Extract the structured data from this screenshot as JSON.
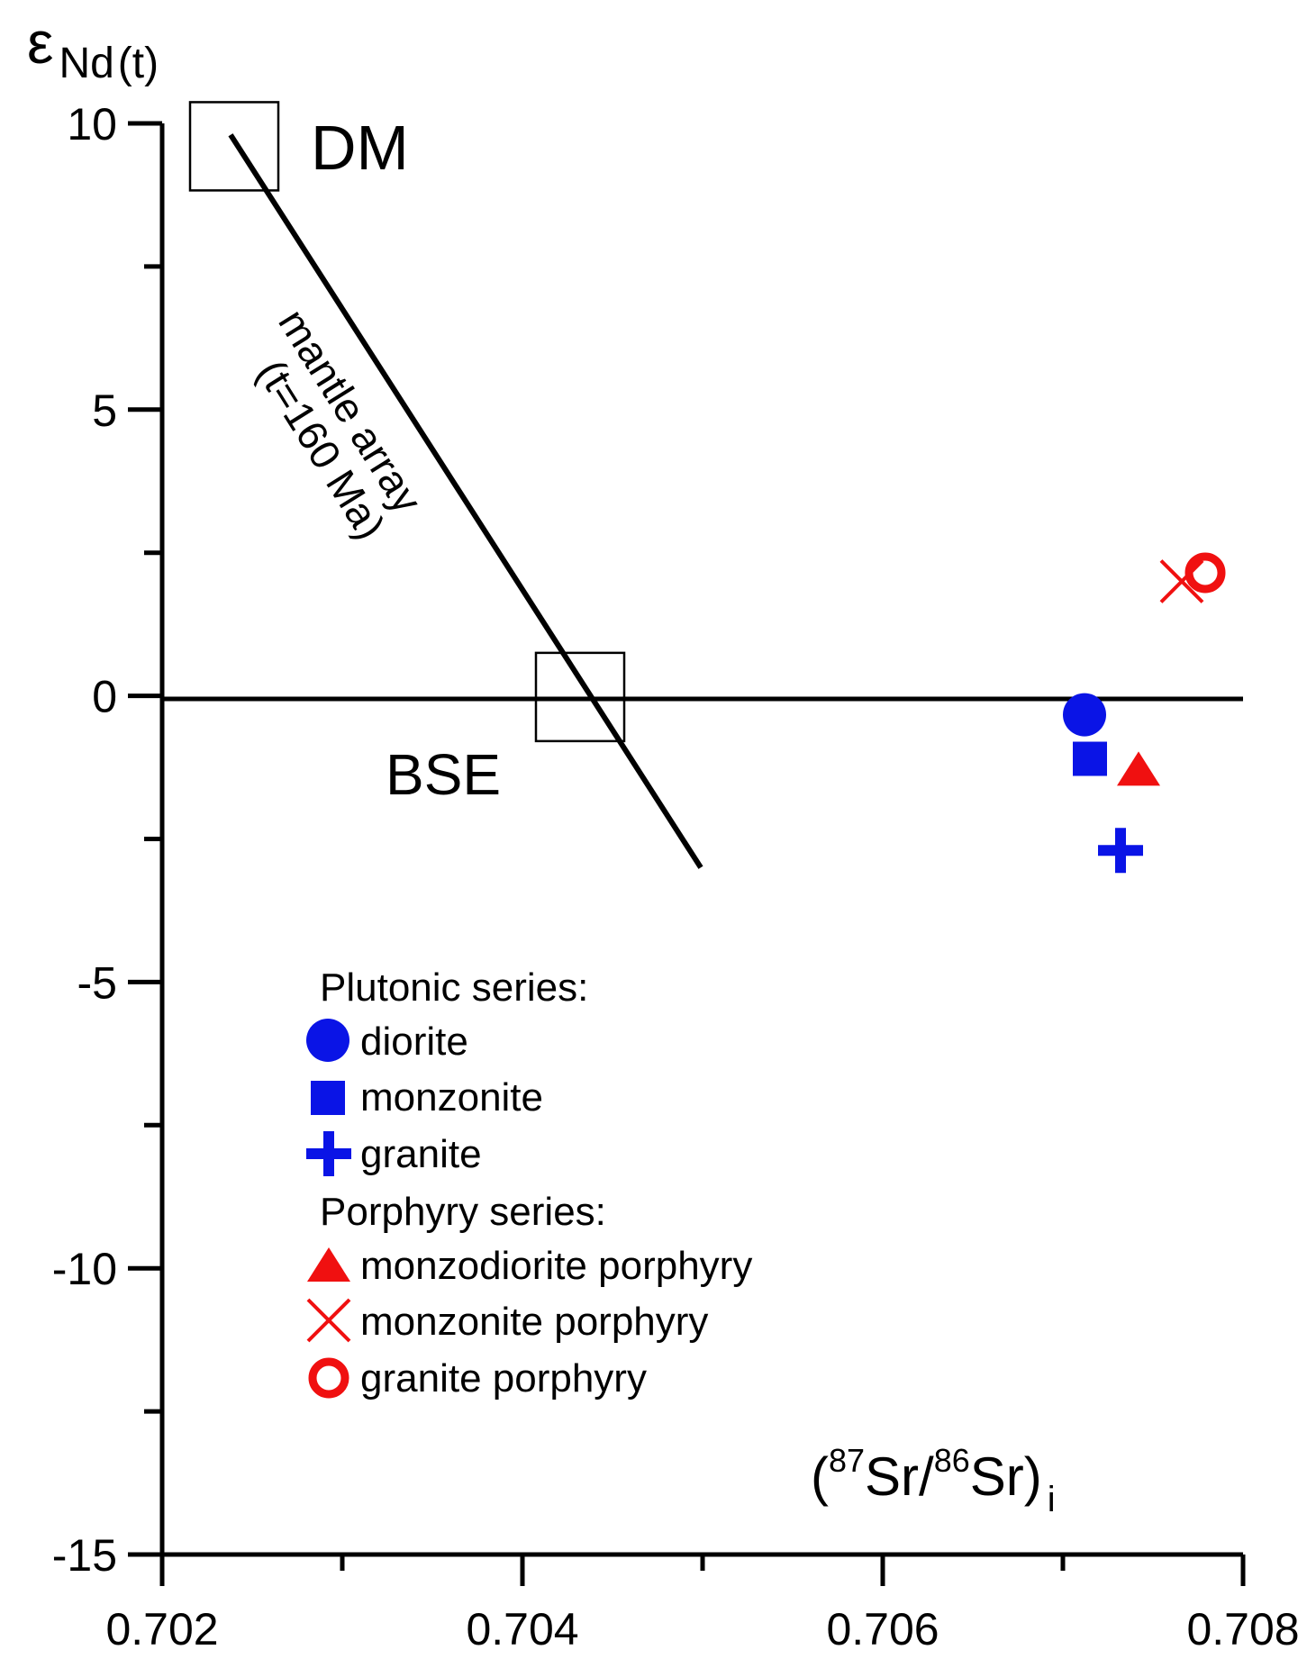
{
  "colors": {
    "blue": "#0a14e6",
    "red": "#f01010",
    "axis": "#000000"
  },
  "chart_data": {
    "type": "scatter",
    "title": "",
    "ylabel": {
      "main": "ε",
      "sub_base": "Nd",
      "sub_paren": "(t)"
    },
    "xlabel": {
      "open": "(",
      "sup1": "87",
      "mid1": "Sr/",
      "sup2": "86",
      "mid2": "Sr)",
      "sub": "i"
    },
    "xlim": [
      0.702,
      0.708
    ],
    "ylim": [
      -15,
      10
    ],
    "x_ticks": [
      0.702,
      0.704,
      0.706,
      0.708
    ],
    "x_tick_labels": [
      "0.702",
      "0.704",
      "0.706",
      "0.708"
    ],
    "y_ticks": [
      10,
      5,
      0,
      -5,
      -10,
      -15
    ],
    "y_tick_labels": [
      "10",
      "5",
      "0",
      "-5",
      "-10",
      "-15"
    ],
    "reference_line_y": 0,
    "mantle_array": {
      "x": [
        0.70238,
        0.70499
      ],
      "y": [
        9.8,
        -3.0
      ],
      "label_line1": "mantle array",
      "label_line2": "(t=160 Ma)"
    },
    "reservoirs": [
      {
        "label": "DM",
        "x": 0.7024,
        "y": 9.6
      },
      {
        "label": "BSE",
        "x": 0.70432,
        "y": -0.02
      }
    ],
    "legend": {
      "groups": [
        {
          "title": "Plutonic series:",
          "items": [
            {
              "name": "diorite",
              "marker": "circle",
              "color": "#0a14e6"
            },
            {
              "name": "monzonite",
              "marker": "square",
              "color": "#0a14e6"
            },
            {
              "name": "granite",
              "marker": "plus",
              "color": "#0a14e6"
            }
          ]
        },
        {
          "title": "Porphyry series:",
          "items": [
            {
              "name": "monzodiorite porphyry",
              "marker": "triangle",
              "color": "#f01010"
            },
            {
              "name": "monzonite porphyry",
              "marker": "cross",
              "color": "#f01010"
            },
            {
              "name": "granite porphyry",
              "marker": "ring",
              "color": "#f01010"
            }
          ]
        }
      ]
    },
    "series": [
      {
        "name": "diorite",
        "marker": "circle",
        "color": "#0a14e6",
        "points": [
          {
            "x": 0.70712,
            "y": -0.33
          }
        ]
      },
      {
        "name": "monzonite",
        "marker": "square",
        "color": "#0a14e6",
        "points": [
          {
            "x": 0.70715,
            "y": -1.1
          }
        ]
      },
      {
        "name": "granite",
        "marker": "plus",
        "color": "#0a14e6",
        "points": [
          {
            "x": 0.70732,
            "y": -2.7
          }
        ]
      },
      {
        "name": "monzodiorite porphyry",
        "marker": "triangle",
        "color": "#f01010",
        "points": [
          {
            "x": 0.70742,
            "y": -1.35
          }
        ]
      },
      {
        "name": "monzonite porphyry",
        "marker": "cross",
        "color": "#f01010",
        "points": [
          {
            "x": 0.70766,
            "y": 2.0
          }
        ]
      },
      {
        "name": "granite porphyry",
        "marker": "ring",
        "color": "#f01010",
        "points": [
          {
            "x": 0.70779,
            "y": 2.15
          }
        ]
      }
    ]
  }
}
